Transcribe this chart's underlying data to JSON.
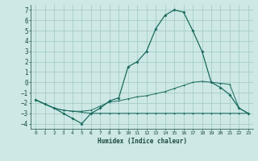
{
  "xlabel": "Humidex (Indice chaleur)",
  "bg_color": "#cde8e5",
  "grid_color": "#a0c8c4",
  "line_color": "#1a6b5e",
  "xlim": [
    -0.5,
    23.5
  ],
  "ylim": [
    -4.5,
    7.5
  ],
  "xticks": [
    0,
    1,
    2,
    3,
    4,
    5,
    6,
    7,
    8,
    9,
    10,
    11,
    12,
    13,
    14,
    15,
    16,
    17,
    18,
    19,
    20,
    21,
    22,
    23
  ],
  "yticks": [
    -4,
    -3,
    -2,
    -1,
    0,
    1,
    2,
    3,
    4,
    5,
    6,
    7
  ],
  "x": [
    0,
    1,
    2,
    3,
    4,
    5,
    6,
    7,
    8,
    9,
    10,
    11,
    12,
    13,
    14,
    15,
    16,
    17,
    18,
    19,
    20,
    21,
    22,
    23
  ],
  "line1": [
    -1.7,
    -2.1,
    -2.5,
    -3.0,
    -3.5,
    -4.0,
    -3.0,
    -2.5,
    -1.8,
    -1.5,
    1.5,
    2.0,
    3.0,
    5.2,
    6.5,
    7.0,
    6.8,
    5.0,
    3.0,
    0.0,
    -0.5,
    -1.2,
    -2.5,
    -3.0
  ],
  "line2": [
    -1.7,
    -2.1,
    -2.5,
    -2.7,
    -2.8,
    -2.8,
    -2.7,
    -2.3,
    -1.9,
    -1.8,
    -1.6,
    -1.4,
    -1.3,
    -1.1,
    -0.9,
    -0.6,
    -0.3,
    0.0,
    0.1,
    0.0,
    -0.1,
    -0.2,
    -2.5,
    -3.0
  ],
  "line3": [
    -1.7,
    -2.1,
    -2.5,
    -2.7,
    -2.8,
    -2.9,
    -3.0,
    -3.0,
    -3.0,
    -3.0,
    -3.0,
    -3.0,
    -3.0,
    -3.0,
    -3.0,
    -3.0,
    -3.0,
    -3.0,
    -3.0,
    -3.0,
    -3.0,
    -3.0,
    -3.0,
    -3.0
  ]
}
